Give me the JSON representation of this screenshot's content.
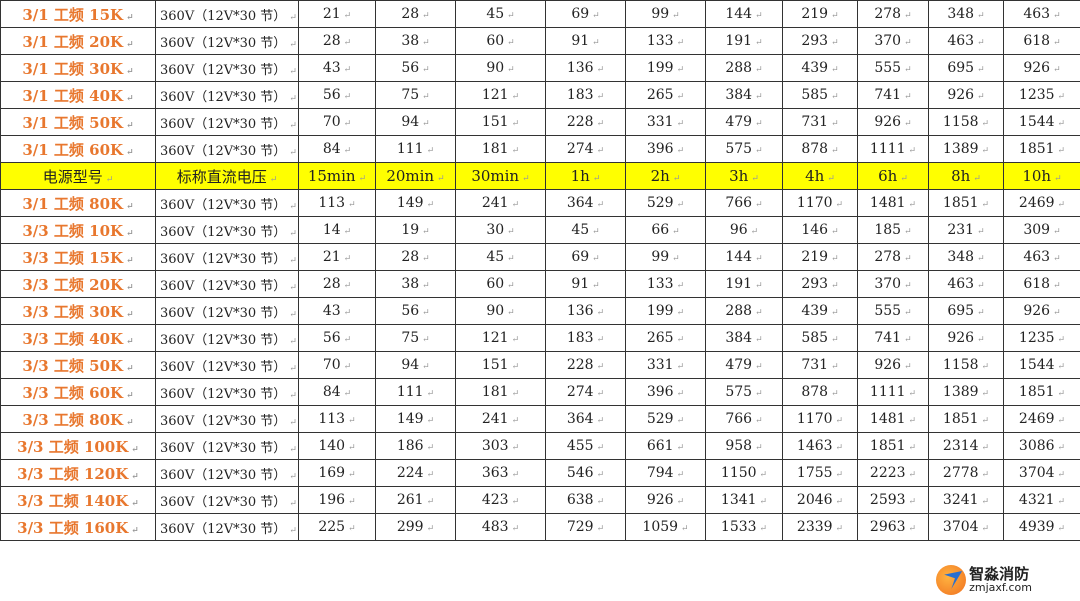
{
  "header": [
    "电源型号",
    "标称直流电压",
    "15min",
    "20min",
    "30min",
    "1h",
    "2h",
    "3h",
    "4h",
    "6h",
    "8h",
    "10h"
  ],
  "header_after_row": 6,
  "rows": [
    {
      "model": "3/1 工频 15K",
      "voltage": "360V（12V*30 节）",
      "values": [
        "21",
        "28",
        "45",
        "69",
        "99",
        "144",
        "219",
        "278",
        "348",
        "463"
      ]
    },
    {
      "model": "3/1 工频 20K",
      "voltage": "360V（12V*30 节）",
      "values": [
        "28",
        "38",
        "60",
        "91",
        "133",
        "191",
        "293",
        "370",
        "463",
        "618"
      ]
    },
    {
      "model": "3/1 工频 30K",
      "voltage": "360V（12V*30 节）",
      "values": [
        "43",
        "56",
        "90",
        "136",
        "199",
        "288",
        "439",
        "555",
        "695",
        "926"
      ]
    },
    {
      "model": "3/1 工频 40K",
      "voltage": "360V（12V*30 节）",
      "values": [
        "56",
        "75",
        "121",
        "183",
        "265",
        "384",
        "585",
        "741",
        "926",
        "1235"
      ]
    },
    {
      "model": "3/1 工频 50K",
      "voltage": "360V（12V*30 节）",
      "values": [
        "70",
        "94",
        "151",
        "228",
        "331",
        "479",
        "731",
        "926",
        "1158",
        "1544"
      ]
    },
    {
      "model": "3/1 工频 60K",
      "voltage": "360V（12V*30 节）",
      "values": [
        "84",
        "111",
        "181",
        "274",
        "396",
        "575",
        "878",
        "1111",
        "1389",
        "1851"
      ]
    },
    {
      "model": "3/1 工频 80K",
      "voltage": "360V（12V*30 节）",
      "values": [
        "113",
        "149",
        "241",
        "364",
        "529",
        "766",
        "1170",
        "1481",
        "1851",
        "2469"
      ]
    },
    {
      "model": "3/3 工频 10K",
      "voltage": "360V（12V*30 节）",
      "values": [
        "14",
        "19",
        "30",
        "45",
        "66",
        "96",
        "146",
        "185",
        "231",
        "309"
      ]
    },
    {
      "model": "3/3 工频 15K",
      "voltage": "360V（12V*30 节）",
      "values": [
        "21",
        "28",
        "45",
        "69",
        "99",
        "144",
        "219",
        "278",
        "348",
        "463"
      ]
    },
    {
      "model": "3/3 工频 20K",
      "voltage": "360V（12V*30 节）",
      "values": [
        "28",
        "38",
        "60",
        "91",
        "133",
        "191",
        "293",
        "370",
        "463",
        "618"
      ]
    },
    {
      "model": "3/3 工频 30K",
      "voltage": "360V（12V*30 节）",
      "values": [
        "43",
        "56",
        "90",
        "136",
        "199",
        "288",
        "439",
        "555",
        "695",
        "926"
      ]
    },
    {
      "model": "3/3 工频 40K",
      "voltage": "360V（12V*30 节）",
      "values": [
        "56",
        "75",
        "121",
        "183",
        "265",
        "384",
        "585",
        "741",
        "926",
        "1235"
      ]
    },
    {
      "model": "3/3 工频 50K",
      "voltage": "360V（12V*30 节）",
      "values": [
        "70",
        "94",
        "151",
        "228",
        "331",
        "479",
        "731",
        "926",
        "1158",
        "1544"
      ]
    },
    {
      "model": "3/3 工频 60K",
      "voltage": "360V（12V*30 节）",
      "values": [
        "84",
        "111",
        "181",
        "274",
        "396",
        "575",
        "878",
        "1111",
        "1389",
        "1851"
      ]
    },
    {
      "model": "3/3 工频 80K",
      "voltage": "360V（12V*30 节）",
      "values": [
        "113",
        "149",
        "241",
        "364",
        "529",
        "766",
        "1170",
        "1481",
        "1851",
        "2469"
      ]
    },
    {
      "model": "3/3 工频 100K",
      "voltage": "360V（12V*30 节）",
      "values": [
        "140",
        "186",
        "303",
        "455",
        "661",
        "958",
        "1463",
        "1851",
        "2314",
        "3086"
      ]
    },
    {
      "model": "3/3 工频 120K",
      "voltage": "360V（12V*30 节）",
      "values": [
        "169",
        "224",
        "363",
        "546",
        "794",
        "1150",
        "1755",
        "2223",
        "2778",
        "3704"
      ]
    },
    {
      "model": "3/3 工频 140K",
      "voltage": "360V（12V*30 节）",
      "values": [
        "196",
        "261",
        "423",
        "638",
        "926",
        "1341",
        "2046",
        "2593",
        "3241",
        "4321"
      ]
    },
    {
      "model": "3/3 工频 160K",
      "voltage": "360V（12V*30 节）",
      "values": [
        "225",
        "299",
        "483",
        "729",
        "1059",
        "1533",
        "2339",
        "2963",
        "3704",
        "4939"
      ]
    }
  ],
  "colors": {
    "model_text": "#e8772e",
    "header_bg": "#ffff00"
  },
  "watermark": {
    "name": "智淼消防",
    "site": "zmjaxf.com"
  }
}
